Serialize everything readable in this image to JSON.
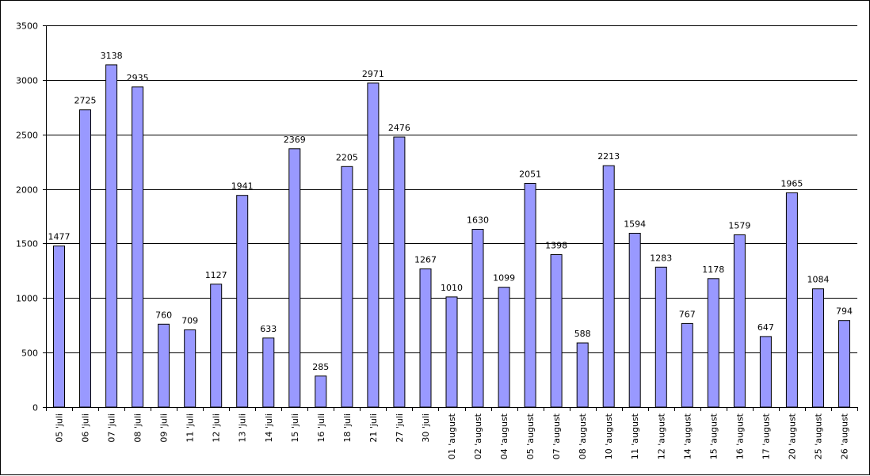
{
  "chart_data": {
    "type": "bar",
    "categories": [
      "05 'juli",
      "06 'juli",
      "07 'juli",
      "08 'juli",
      "09 'juli",
      "11 'juli",
      "12 'juli",
      "13 'juli",
      "14 'juli",
      "15 'juli",
      "16 'juli",
      "18 'juli",
      "21 'juli",
      "27 'juli",
      "30 'juli",
      "01 'august",
      "02 'august",
      "04 'august",
      "05 'august",
      "07 'august",
      "08 'august",
      "10 'august",
      "11 'august",
      "12 'august",
      "14 'august",
      "15 'august",
      "16 'august",
      "17 'august",
      "20 'august",
      "25 'august",
      "26 'august"
    ],
    "values": [
      1477,
      2725,
      3138,
      2935,
      760,
      709,
      1127,
      1941,
      633,
      2369,
      285,
      2205,
      2971,
      2476,
      1267,
      1010,
      1630,
      1099,
      2051,
      1398,
      588,
      2213,
      1594,
      1283,
      767,
      1178,
      1579,
      647,
      1965,
      1084,
      794
    ],
    "title": "",
    "xlabel": "",
    "ylabel": "",
    "ylim": [
      0,
      3500
    ],
    "yticks": [
      0,
      500,
      1000,
      1500,
      2000,
      2500,
      3000,
      3500
    ],
    "grid": true,
    "legend": "none",
    "colors": {
      "bar_fill": "#9999ff",
      "bar_stroke": "#000000",
      "grid": "#000000"
    }
  }
}
